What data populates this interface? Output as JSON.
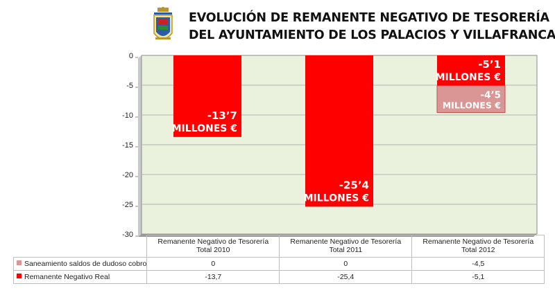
{
  "title": {
    "line1": "EVOLUCIÓN DE REMANENTE NEGATIVO DE TESORERÍA",
    "line2": "DEL AYUNTAMIENTO DE LOS PALACIOS Y VILLAFRANCA"
  },
  "colors": {
    "real": "#ff0000",
    "saneamiento": "#d99694",
    "plot_bg": "#eaf1dd",
    "grid": "#b3b3b3"
  },
  "chart_data": {
    "type": "bar",
    "stacked": true,
    "categories": [
      "Remanente Negativo de Tesorería Total 2010",
      "Remanente Negativo de Tesorería Total 2011",
      "Remanente Negativo de Tesorería Total 2012"
    ],
    "category_lines": [
      [
        "Remanente Negativo de Tesorería",
        "Total 2010"
      ],
      [
        "Remanente Negativo de Tesorería",
        "Total 2011"
      ],
      [
        "Remanente Negativo de Tesorería",
        "Total 2012"
      ]
    ],
    "series": [
      {
        "name": "Remanente Negativo Real",
        "values": [
          -13.7,
          -25.4,
          -5.1
        ]
      },
      {
        "name": "Saneamiento saldos de dudoso cobro",
        "values": [
          0,
          0,
          -4.5
        ]
      }
    ],
    "table_values": {
      "Saneamiento saldos de dudoso cobro": [
        "0",
        "0",
        "-4,5"
      ],
      "Remanente Negativo Real": [
        "-13,7",
        "-25,4",
        "-5,1"
      ]
    },
    "yticks": [
      "0",
      "-5",
      "-10",
      "-15",
      "-20",
      "-25",
      "-30"
    ],
    "ylim": [
      -30,
      0
    ],
    "grid": true,
    "legend": "data-table",
    "annotations": [
      {
        "series": "Remanente Negativo Real",
        "category": 0,
        "lines": [
          "-13’7",
          "MILLONES €"
        ]
      },
      {
        "series": "Remanente Negativo Real",
        "category": 1,
        "lines": [
          "-25’4",
          "MILLONES €"
        ]
      },
      {
        "series": "Remanente Negativo Real",
        "category": 2,
        "lines": [
          "-5’1",
          "MILLONES €"
        ]
      },
      {
        "series": "Saneamiento saldos de dudoso cobro",
        "category": 2,
        "lines": [
          "-4’5",
          "MILLONES €"
        ]
      }
    ]
  }
}
